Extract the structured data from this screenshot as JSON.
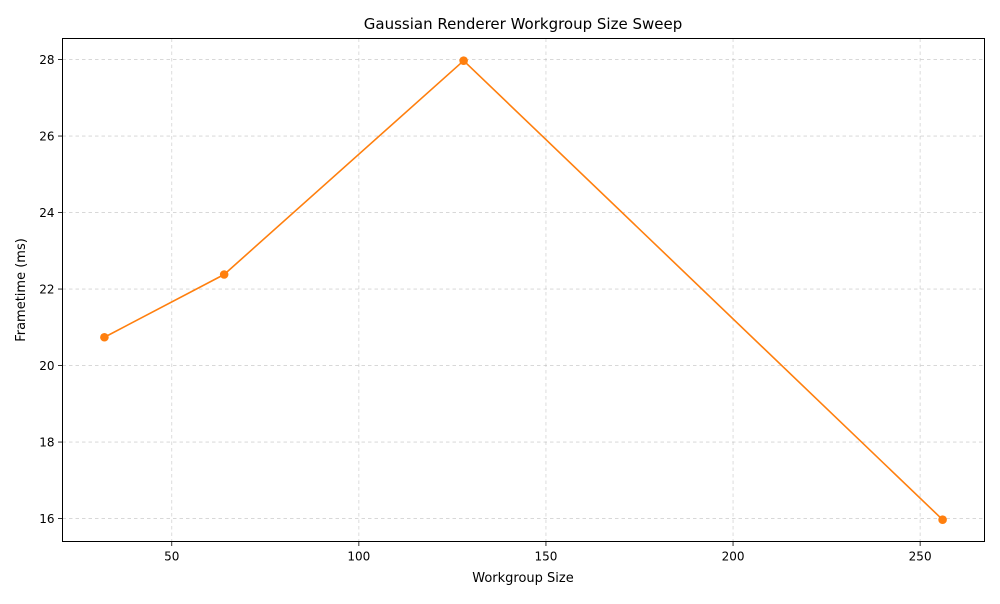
{
  "chart_data": {
    "type": "line",
    "title": "Gaussian Renderer Workgroup Size Sweep",
    "xlabel": "Workgroup Size",
    "ylabel": "Frametime (ms)",
    "xlim": [
      20.8,
      267.2
    ],
    "ylim": [
      15.4,
      28.55
    ],
    "xticks": [
      50,
      100,
      150,
      200,
      250
    ],
    "yticks": [
      16,
      18,
      20,
      22,
      24,
      26,
      28
    ],
    "grid": true,
    "legend": "none",
    "series": [
      {
        "x": [
          32,
          64,
          128,
          256
        ],
        "y": [
          20.74,
          22.38,
          27.97,
          15.97
        ],
        "color": "#ff7f0e",
        "marker": "circle"
      }
    ]
  }
}
